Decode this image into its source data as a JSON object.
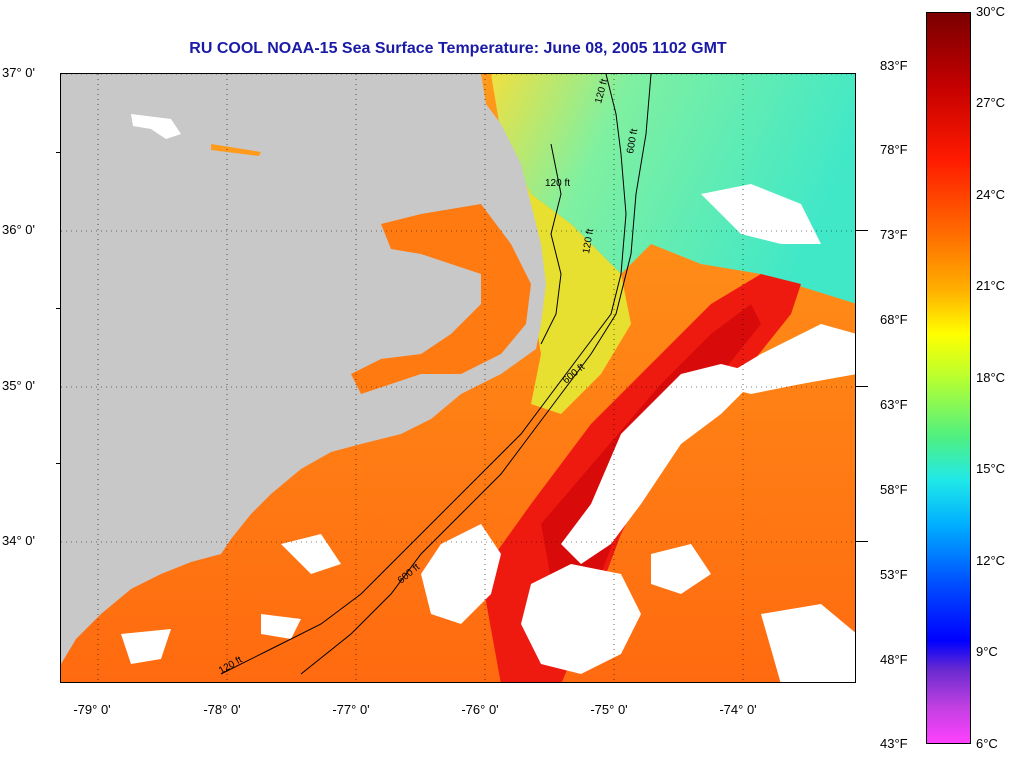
{
  "title": "RU COOL  NOAA-15  Sea Surface Temperature:  June 08, 2005 1102 GMT",
  "map": {
    "lat_labels": [
      "37° 0'",
      "36° 0'",
      "35° 0'",
      "34° 0'"
    ],
    "lon_labels": [
      "-79° 0'",
      "-78° 0'",
      "-77° 0'",
      "-76° 0'",
      "-75° 0'",
      "-74° 0'"
    ],
    "contours": [
      "120 ft",
      "600 ft",
      "120 ft",
      "120 ft",
      "600 ft",
      "120 ft",
      "600 ft"
    ],
    "colors": {
      "land": "#c8c8c8",
      "cloud": "#ffffff",
      "shelf_water": "#ff7a10",
      "gulf_stream": "#ee1a10",
      "cool_water": "#40e8c0"
    }
  },
  "colorbar": {
    "celsius": [
      "30°C",
      "27°C",
      "24°C",
      "21°C",
      "18°C",
      "15°C",
      "12°C",
      "9°C",
      "6°C"
    ],
    "fahrenheit": [
      "83°F",
      "78°F",
      "73°F",
      "68°F",
      "63°F",
      "58°F",
      "53°F",
      "48°F",
      "43°F"
    ]
  }
}
